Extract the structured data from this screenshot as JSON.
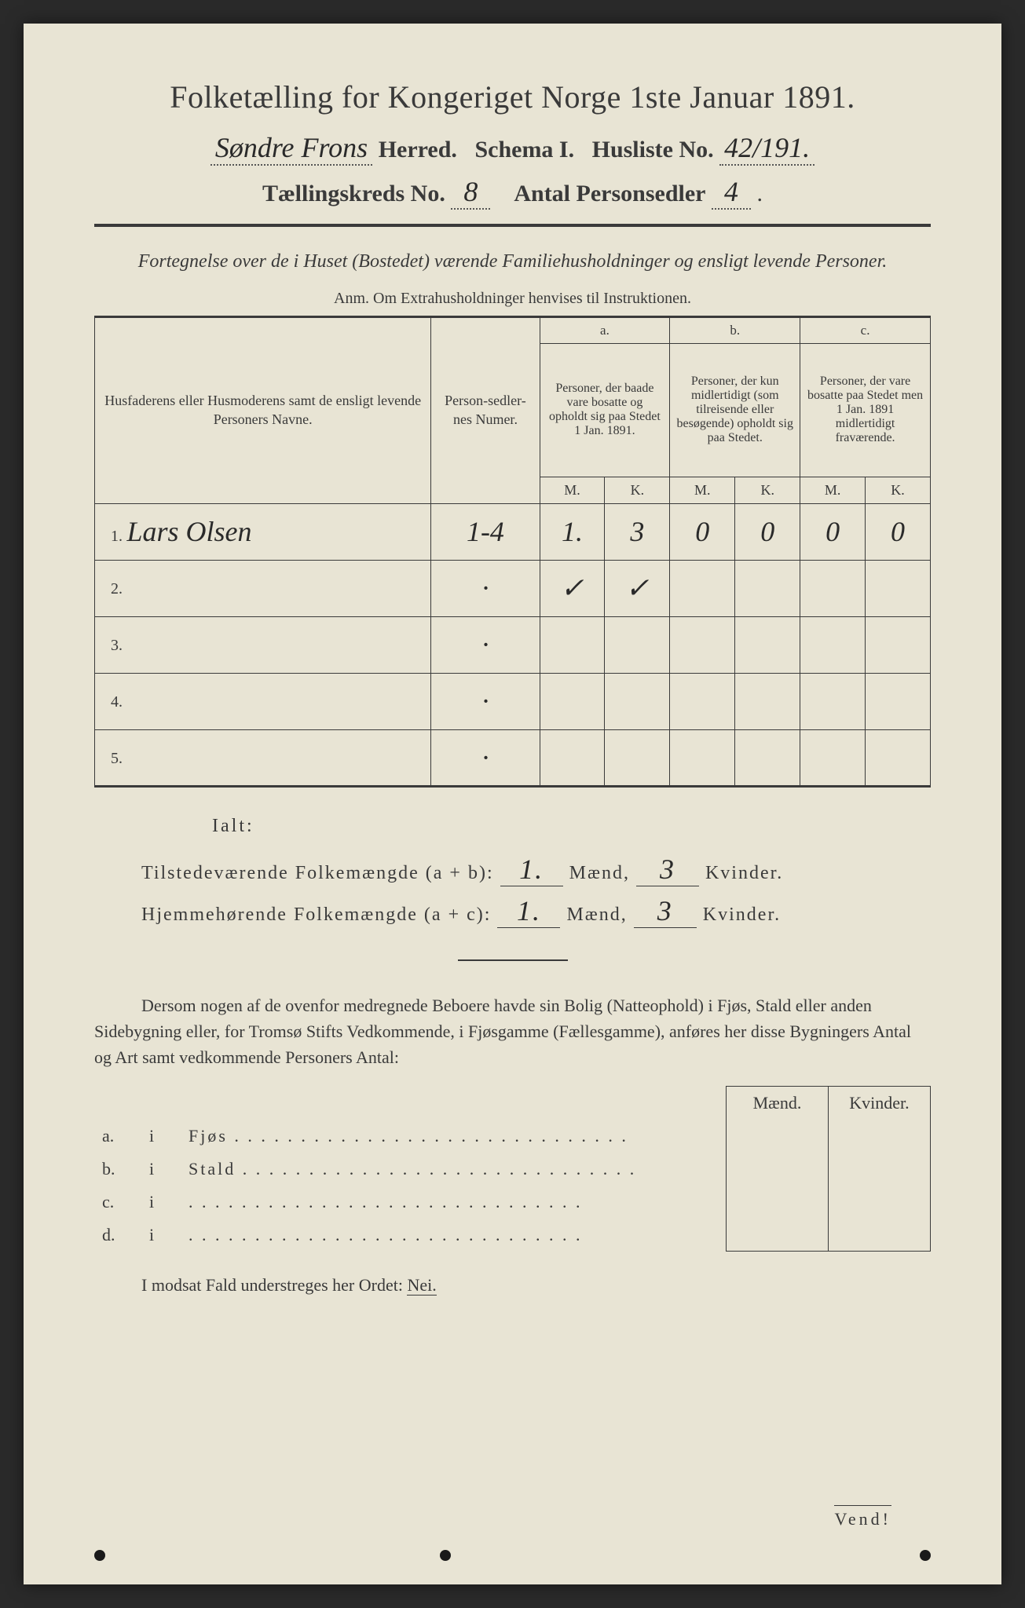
{
  "header": {
    "title": "Folketælling for Kongeriget Norge 1ste Januar 1891.",
    "herred_value": "Søndre Frons",
    "herred_label": "Herred.",
    "schema_label": "Schema I.",
    "husliste_label": "Husliste No.",
    "husliste_value": "42/191.",
    "kreds_label": "Tællingskreds No.",
    "kreds_value": "8",
    "personsedler_label": "Antal Personsedler",
    "personsedler_value": "4"
  },
  "subtitle": "Fortegnelse over de i Huset (Bostedet) værende Familiehusholdninger og ensligt levende Personer.",
  "anm": "Anm.  Om Extrahusholdninger henvises til Instruktionen.",
  "table": {
    "col_names": "Husfaderens eller Husmoderens samt de ensligt levende Personers Navne.",
    "col_pnum": "Person-sedler-nes Numer.",
    "group_a_label": "a.",
    "group_a_text": "Personer, der baade vare bosatte og opholdt sig paa Stedet 1 Jan. 1891.",
    "group_b_label": "b.",
    "group_b_text": "Personer, der kun midlertidigt (som tilreisende eller besøgende) opholdt sig paa Stedet.",
    "group_c_label": "c.",
    "group_c_text": "Personer, der vare bosatte paa Stedet men 1 Jan. 1891 midlertidigt fraværende.",
    "mk_m": "M.",
    "mk_k": "K.",
    "rows": [
      {
        "n": "1.",
        "name": "Lars Olsen",
        "pnum": "1-4",
        "am": "1.",
        "ak": "3",
        "bm": "0",
        "bk": "0",
        "cm": "0",
        "ck": "0"
      },
      {
        "n": "2.",
        "name": "",
        "pnum": "·",
        "am": "✓",
        "ak": "✓",
        "bm": "",
        "bk": "",
        "cm": "",
        "ck": ""
      },
      {
        "n": "3.",
        "name": "",
        "pnum": "·",
        "am": "",
        "ak": "",
        "bm": "",
        "bk": "",
        "cm": "",
        "ck": ""
      },
      {
        "n": "4.",
        "name": "",
        "pnum": "·",
        "am": "",
        "ak": "",
        "bm": "",
        "bk": "",
        "cm": "",
        "ck": ""
      },
      {
        "n": "5.",
        "name": "",
        "pnum": "·",
        "am": "",
        "ak": "",
        "bm": "",
        "bk": "",
        "cm": "",
        "ck": ""
      }
    ]
  },
  "ialt": "Ialt:",
  "sum1": {
    "label": "Tilstedeværende Folkemængde (a + b):",
    "m": "1.",
    "mlabel": "Mænd,",
    "k": "3",
    "klabel": "Kvinder."
  },
  "sum2": {
    "label": "Hjemmehørende Folkemængde (a + c):",
    "m": "1.",
    "mlabel": "Mænd,",
    "k": "3",
    "klabel": "Kvinder."
  },
  "para": "Dersom nogen af de ovenfor medregnede Beboere havde sin Bolig (Natteophold) i Fjøs, Stald eller anden Sidebygning eller, for Tromsø Stifts Vedkommende, i Fjøsgamme (Fællesgamme), anføres her disse Bygningers Antal og Art samt vedkommende Personers Antal:",
  "subtable": {
    "h_m": "Mænd.",
    "h_k": "Kvinder.",
    "rows": [
      {
        "a": "a.",
        "i": "i",
        "label": "Fjøs"
      },
      {
        "a": "b.",
        "i": "i",
        "label": "Stald"
      },
      {
        "a": "c.",
        "i": "i",
        "label": ""
      },
      {
        "a": "d.",
        "i": "i",
        "label": ""
      }
    ]
  },
  "final": {
    "text": "I modsat Fald understreges her Ordet:",
    "nei": "Nei."
  },
  "vend": "Vend!"
}
